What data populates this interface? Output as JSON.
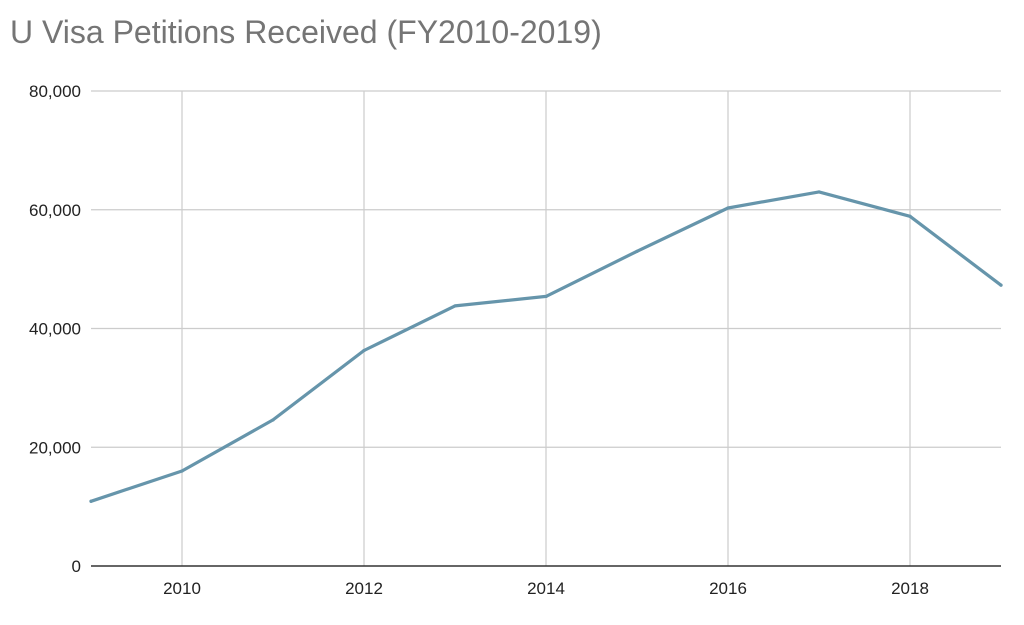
{
  "chart_data": {
    "type": "line",
    "title": "U Visa Petitions Received (FY2010-2019)",
    "xlabel": "",
    "ylabel": "",
    "x": [
      2009,
      2010,
      2011,
      2012,
      2013,
      2014,
      2015,
      2016,
      2017,
      2018,
      2019
    ],
    "series": [
      {
        "values": [
          10900,
          16000,
          24600,
          36300,
          43800,
          45400,
          53000,
          60300,
          63000,
          58900,
          47300
        ]
      }
    ],
    "xlim": [
      2009,
      2019
    ],
    "ylim": [
      0,
      80000
    ],
    "x_ticks": [
      2010,
      2012,
      2014,
      2016,
      2018
    ],
    "x_tick_labels": [
      "2010",
      "2012",
      "2014",
      "2016",
      "2018"
    ],
    "y_ticks": [
      0,
      20000,
      40000,
      60000,
      80000
    ],
    "y_tick_labels": [
      "0",
      "20,000",
      "40,000",
      "60,000",
      "80,000"
    ],
    "grid": true,
    "legend": "none",
    "colors": {
      "line": "#6695ab",
      "grid": "#cccccc",
      "axis": "#333333",
      "title": "#757575"
    }
  }
}
